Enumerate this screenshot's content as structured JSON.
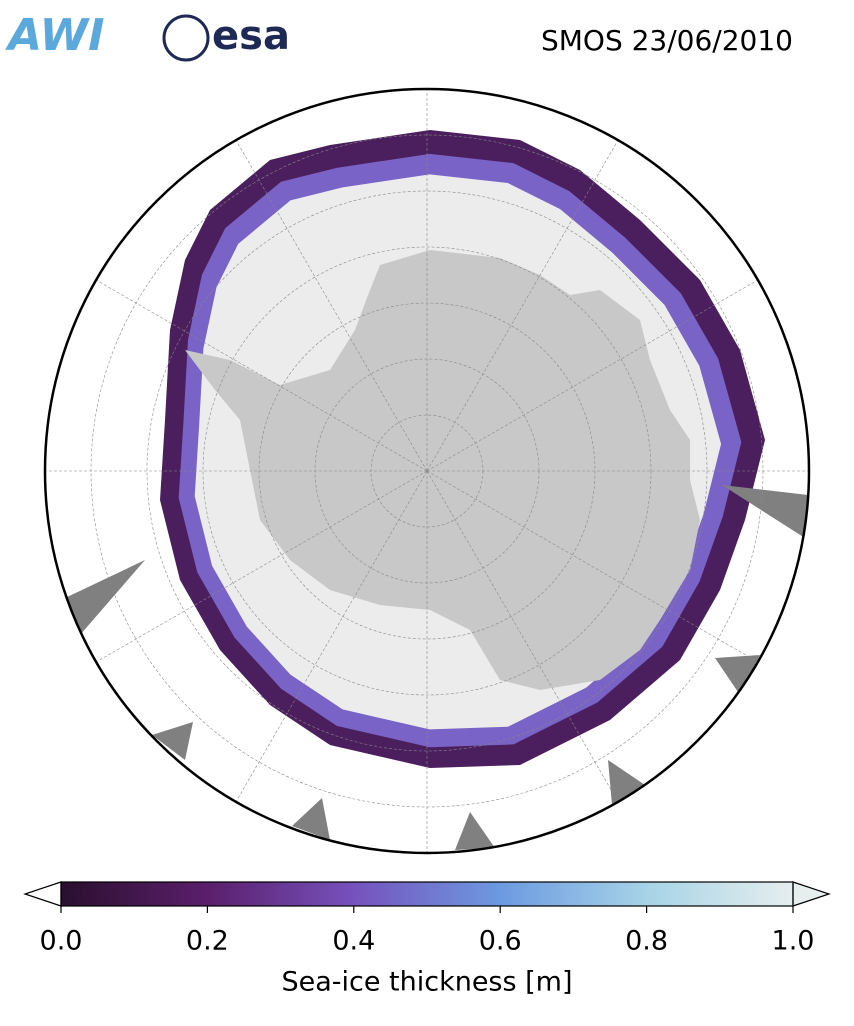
{
  "header": {
    "title": "SMOS 23/06/2010",
    "logos": [
      "AWI",
      "esa"
    ]
  },
  "colorbar": {
    "label": "Sea-ice thickness [m]",
    "lim": [
      0,
      1
    ],
    "ticks": [
      {
        "value": 0,
        "label": "0.0"
      },
      {
        "value": 0.2,
        "label": "0.2"
      },
      {
        "value": 0.4,
        "label": "0.4"
      },
      {
        "value": 0.6,
        "label": "0.6"
      },
      {
        "value": 0.8,
        "label": "0.8"
      },
      {
        "value": 1,
        "label": "1.0"
      }
    ],
    "colors": [
      "#2a0f2e",
      "#5a1f6b",
      "#7652bd",
      "#6c9ae0",
      "#a7d3e6",
      "#e6eeee"
    ]
  }
}
